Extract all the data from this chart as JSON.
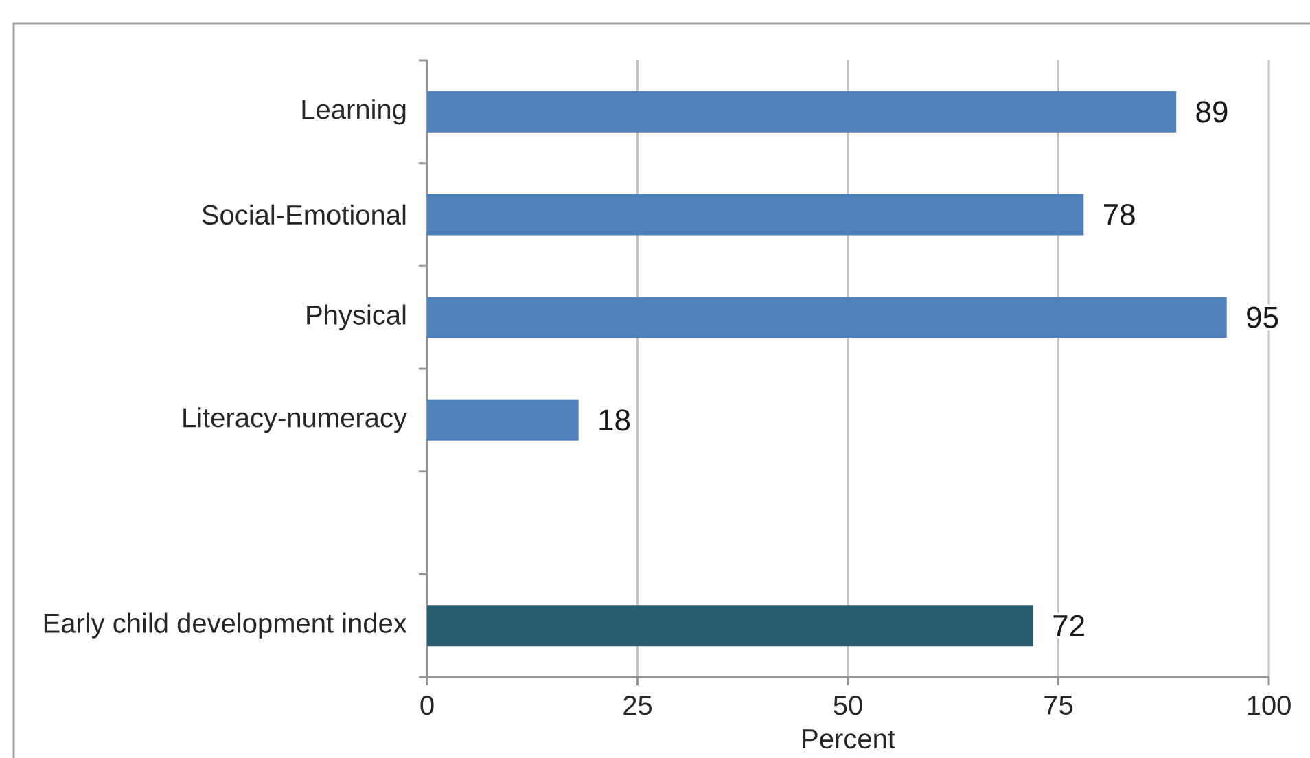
{
  "chart_data": {
    "type": "bar",
    "orientation": "horizontal",
    "categories": [
      "Learning",
      "Social-Emotional",
      "Physical",
      "Literacy-numeracy",
      null,
      "Early child development index"
    ],
    "values": [
      89,
      78,
      95,
      18,
      null,
      72
    ],
    "colors": [
      "#4f81bd",
      "#4f81bd",
      "#4f81bd",
      "#4f81bd",
      null,
      "#2b5d70"
    ],
    "xlim": [
      0,
      100
    ],
    "xticks": [
      0,
      25,
      50,
      75,
      100
    ],
    "xlabel": "Percent",
    "grid": "x",
    "data_labels": true
  }
}
